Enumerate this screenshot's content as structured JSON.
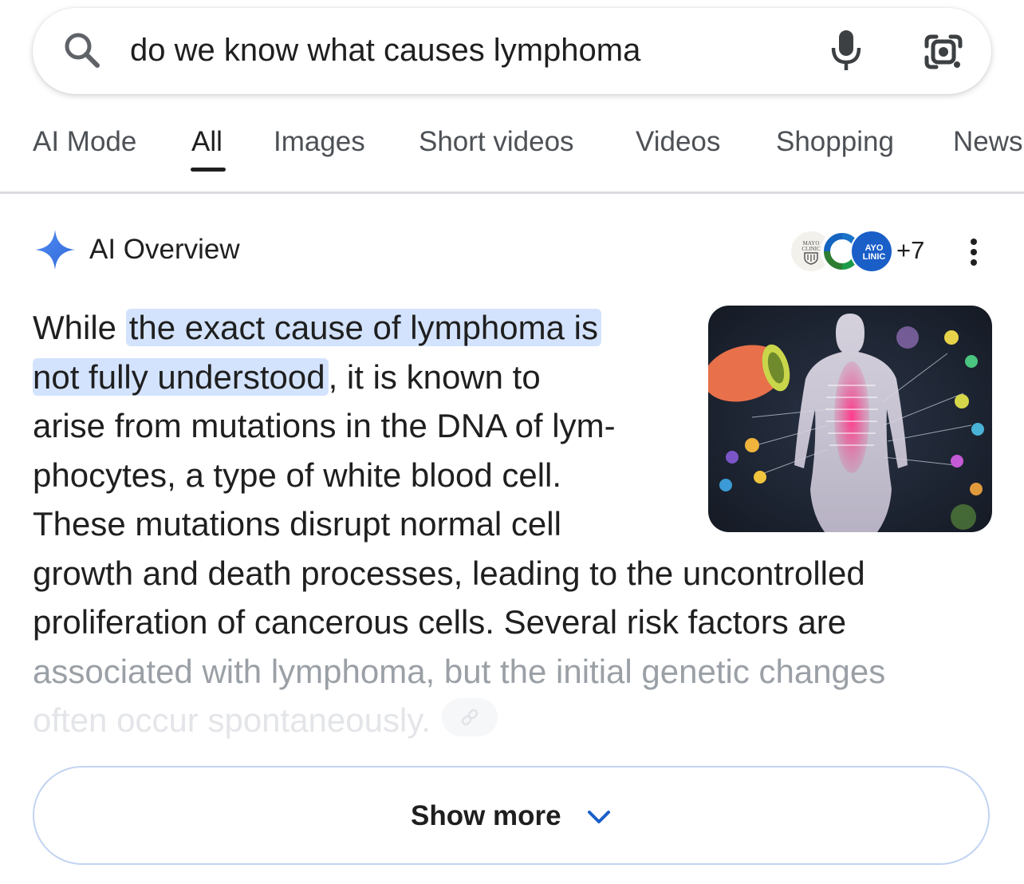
{
  "search": {
    "query": "do we know what causes lymphoma"
  },
  "tabs": [
    {
      "label": "AI Mode"
    },
    {
      "label": "All",
      "active": true
    },
    {
      "label": "Images"
    },
    {
      "label": "Short videos"
    },
    {
      "label": "Videos"
    },
    {
      "label": "Shopping"
    },
    {
      "label": "News"
    }
  ],
  "ai_overview": {
    "title": "AI Overview",
    "sources": {
      "extra_count": "+7",
      "avatar_1": "MAYO CLINIC",
      "avatar_3": "MAYO CLINIC"
    },
    "lines": {
      "l1_a": "While ",
      "l1_hl": "the exact cause of lymphoma is",
      "l2_hl": "not fully understood",
      "l2_b": ", it is known to",
      "l3": "arise from mutations in the DNA of lym-",
      "l4": "phocytes, a type of white blood cell.",
      "l5": "These mutations disrupt normal cell",
      "l6": "growth and death processes, leading to the uncontrolled",
      "l7": "proliferation of cancerous cells. Several risk factors are",
      "l8": "associated with lymphoma, but the initial genetic changes",
      "l9": "often occur spontaneously."
    },
    "show_more_label": "Show more"
  },
  "colors": {
    "highlight": "#d3e3fd",
    "accent_blue": "#4285f4",
    "text": "#1f1f1f",
    "muted": "#4d5156"
  },
  "icons": [
    "search-icon",
    "microphone-icon",
    "google-lens-icon",
    "ai-sparkle-icon",
    "more-vert-icon",
    "link-icon",
    "chevron-down-icon"
  ]
}
